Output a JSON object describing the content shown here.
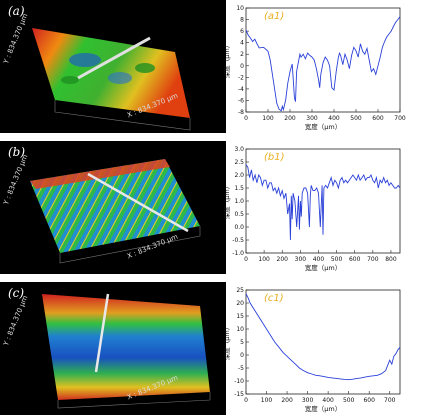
{
  "panels_3d": [
    {
      "tag": "(a)",
      "y_axis": "Y : 834.370 μm",
      "x_axis": "X : 834.370 μm"
    },
    {
      "tag": "(b)",
      "y_axis": "Y : 834.370 μm",
      "x_axis": "X : 834.370 μm"
    },
    {
      "tag": "(c)",
      "y_axis": "Y : 834.370 μm",
      "x_axis": "X : 834.370 μm"
    }
  ],
  "colors": {
    "line": "#2a40d8",
    "tag": "#e8b020",
    "frame": "#222222"
  },
  "chart_data": [
    {
      "type": "line",
      "title": "(a1)",
      "xlabel": "宽度（μm）",
      "ylabel": "深度（μm）",
      "xlim": [
        0,
        700
      ],
      "ylim": [
        -8,
        10
      ],
      "xticks": [
        "0",
        "100",
        "200",
        "300",
        "400",
        "500",
        "600",
        "700"
      ],
      "yticks": [
        "-8",
        "-6",
        "-4",
        "-2",
        "0",
        "2",
        "4",
        "6",
        "8",
        "10"
      ],
      "series": [
        {
          "x": [
            0,
            10,
            20,
            30,
            40,
            50,
            60,
            80,
            100,
            110,
            120,
            130,
            140,
            150,
            160,
            165,
            170,
            180,
            190,
            200,
            210,
            215,
            220,
            225,
            230,
            240,
            245,
            250,
            260,
            270,
            280,
            290,
            300,
            310,
            320,
            330,
            335,
            340,
            350,
            360,
            370,
            380,
            390,
            400,
            410,
            420,
            425,
            430,
            440,
            450,
            460,
            470,
            480,
            490,
            500,
            510,
            520,
            530,
            540,
            550,
            560,
            570,
            580,
            590,
            600,
            610,
            620,
            630,
            640,
            650,
            660,
            670,
            680,
            690,
            700
          ],
          "y": [
            6.2,
            5.3,
            4.8,
            4.2,
            4.6,
            3.8,
            3.1,
            3.2,
            2.5,
            1.0,
            -1.5,
            -4.0,
            -6.5,
            -7.5,
            -7.8,
            -7.0,
            -7.6,
            -6.0,
            -3.0,
            -1.0,
            0.3,
            -2.5,
            -5.5,
            -6.2,
            -1.0,
            1.0,
            2.0,
            1.5,
            2.0,
            1.2,
            2.2,
            1.8,
            1.5,
            1.0,
            -0.5,
            -2.5,
            -3.8,
            -1.5,
            0.5,
            1.5,
            1.0,
            0.0,
            -3.8,
            -4.2,
            -1.0,
            1.5,
            2.2,
            1.8,
            0.2,
            2.0,
            1.0,
            -0.5,
            1.8,
            3.2,
            2.6,
            1.5,
            3.8,
            2.5,
            2.0,
            3.0,
            1.0,
            -1.0,
            -0.5,
            -1.5,
            0.0,
            1.5,
            3.2,
            4.2,
            5.0,
            5.5,
            6.0,
            6.8,
            7.5,
            8.0,
            8.5
          ]
        }
      ]
    },
    {
      "type": "line",
      "title": "(b1)",
      "xlabel": "宽度（μm）",
      "ylabel": "深度（μm）",
      "xlim": [
        0,
        850
      ],
      "ylim": [
        -1.0,
        3.0
      ],
      "xticks": [
        "0",
        "100",
        "200",
        "300",
        "400",
        "500",
        "600",
        "700",
        "800"
      ],
      "yticks": [
        "-1.0",
        "-0.5",
        "0.0",
        "0.5",
        "1.0",
        "1.5",
        "2.0",
        "2.5",
        "3.0"
      ],
      "series": [
        {
          "x": [
            0,
            10,
            20,
            30,
            40,
            50,
            60,
            70,
            80,
            90,
            100,
            110,
            120,
            130,
            140,
            150,
            160,
            170,
            180,
            190,
            200,
            210,
            220,
            230,
            240,
            245,
            250,
            255,
            260,
            270,
            280,
            290,
            295,
            300,
            305,
            310,
            320,
            330,
            340,
            350,
            355,
            360,
            370,
            380,
            390,
            400,
            410,
            420,
            425,
            430,
            440,
            450,
            460,
            470,
            480,
            490,
            500,
            510,
            520,
            530,
            540,
            550,
            560,
            570,
            580,
            590,
            600,
            610,
            620,
            630,
            640,
            650,
            660,
            670,
            680,
            690,
            700,
            710,
            720,
            730,
            740,
            750,
            760,
            770,
            780,
            790,
            800,
            810,
            820,
            830,
            840,
            850
          ],
          "y": [
            2.4,
            2.3,
            1.9,
            2.2,
            1.8,
            2.0,
            1.7,
            2.0,
            1.9,
            1.6,
            1.8,
            1.8,
            1.5,
            1.7,
            1.7,
            1.4,
            1.5,
            1.3,
            1.5,
            1.2,
            1.4,
            1.1,
            1.3,
            0.5,
            0.9,
            -0.5,
            1.2,
            0.3,
            1.3,
            1.0,
            0.0,
            1.2,
            -0.1,
            1.0,
            0.4,
            1.3,
            1.5,
            1.5,
            1.3,
            0.0,
            1.2,
            1.6,
            1.4,
            1.4,
            1.5,
            1.3,
            0.0,
            1.6,
            -0.3,
            1.5,
            1.6,
            1.5,
            1.7,
            1.9,
            1.6,
            1.8,
            1.7,
            1.5,
            1.8,
            1.9,
            1.7,
            1.8,
            1.7,
            1.8,
            1.9,
            2.0,
            1.9,
            1.8,
            2.0,
            1.8,
            1.9,
            2.0,
            1.8,
            1.9,
            1.9,
            2.0,
            1.8,
            1.7,
            1.9,
            1.5,
            1.8,
            1.7,
            1.9,
            1.7,
            1.8,
            1.6,
            1.7,
            1.6,
            1.5,
            1.5,
            1.6,
            1.5
          ]
        }
      ]
    },
    {
      "type": "line",
      "title": "(c1)",
      "xlabel": "宽度（μm）",
      "ylabel": "深度（μm）",
      "xlim": [
        0,
        750
      ],
      "ylim": [
        -15,
        25
      ],
      "xticks": [
        "0",
        "100",
        "200",
        "300",
        "400",
        "500",
        "600",
        "700"
      ],
      "yticks": [
        "-15",
        "-10",
        "-5",
        "0",
        "5",
        "10",
        "15",
        "20",
        "25"
      ],
      "series": [
        {
          "x": [
            0,
            10,
            20,
            40,
            60,
            80,
            100,
            120,
            140,
            160,
            180,
            200,
            220,
            240,
            260,
            280,
            300,
            320,
            340,
            360,
            380,
            400,
            420,
            440,
            460,
            480,
            500,
            520,
            540,
            560,
            580,
            600,
            620,
            640,
            660,
            680,
            700,
            710,
            720,
            730,
            740,
            750
          ],
          "y": [
            23.5,
            22.0,
            20.0,
            17.5,
            15.0,
            12.5,
            10.0,
            7.5,
            5.0,
            3.0,
            1.0,
            -0.5,
            -2.0,
            -3.5,
            -5.0,
            -6.0,
            -6.8,
            -7.3,
            -7.8,
            -8.0,
            -8.3,
            -8.6,
            -8.8,
            -9.0,
            -9.2,
            -9.4,
            -9.5,
            -9.3,
            -9.0,
            -8.8,
            -8.5,
            -8.2,
            -8.0,
            -7.8,
            -7.2,
            -6.0,
            -2.0,
            -3.5,
            -0.5,
            0.5,
            2.0,
            3.0
          ]
        }
      ]
    }
  ]
}
